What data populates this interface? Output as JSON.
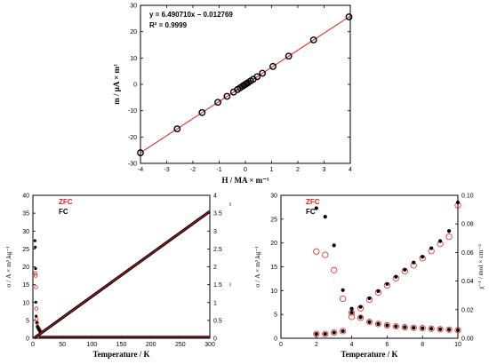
{
  "chart_data": [
    {
      "id": "top",
      "type": "scatter",
      "xlabel": "H / MA × m⁻¹",
      "ylabel": "m / μA × m²",
      "xlim": [
        -4,
        4
      ],
      "ylim": [
        -30,
        30
      ],
      "xticks": [
        -4,
        -3,
        -2,
        -1,
        0,
        1,
        2,
        3,
        4
      ],
      "yticks": [
        -30,
        -20,
        -10,
        0,
        10,
        20,
        30
      ],
      "annotations": [
        "y = 6.490710x − 0.012769",
        "R² = 0.9999"
      ],
      "fit": {
        "slope": 6.49071,
        "intercept": -0.012769,
        "color": "#e02020"
      },
      "series": [
        {
          "x": [
            -4,
            -2.6,
            -1.65,
            -1.05,
            -0.7,
            -0.45,
            -0.3,
            -0.2,
            -0.1,
            -0.05,
            0,
            0.05,
            0.1,
            0.2,
            0.3,
            0.45,
            0.65,
            1.05,
            1.65,
            2.6,
            3.95
          ],
          "y": [
            -25.98,
            -16.89,
            -10.72,
            -6.83,
            -4.56,
            -2.93,
            -1.96,
            -1.31,
            -0.66,
            -0.34,
            -0.01,
            0.31,
            0.64,
            1.29,
            1.93,
            2.91,
            4.21,
            6.8,
            10.7,
            16.86,
            25.63
          ]
        }
      ]
    },
    {
      "id": "bottom-left",
      "type": "scatter",
      "xlabel": "Temperature / K",
      "ylabel": "σ / A × m².kg⁻¹",
      "xlim": [
        0,
        300
      ],
      "ylim": [
        0,
        40
      ],
      "y2lim": [
        0,
        4
      ],
      "xticks": [
        0,
        50,
        100,
        150,
        200,
        250,
        300
      ],
      "yticks": [
        0,
        5,
        10,
        15,
        20,
        25,
        30,
        35,
        40
      ],
      "y2ticks": [
        0,
        0.5,
        1,
        1.5,
        2,
        2.5,
        3,
        3.5,
        4
      ],
      "y2label_marks": [
        "ı",
        "ı"
      ],
      "legend": [
        {
          "label": "ZFC",
          "color": "#e02020"
        },
        {
          "label": "FC",
          "color": "#000000"
        }
      ],
      "series": [
        {
          "name": "ZFC",
          "x": [
            2,
            2.5,
            3,
            3.5,
            4,
            5,
            6,
            7,
            8,
            9,
            10
          ],
          "y": [
            18.2,
            17.5,
            14.3,
            8.3,
            5.4,
            4.3,
            3.2,
            2.9,
            2.6,
            2.3,
            2.0
          ],
          "color": "#e02020"
        },
        {
          "name": "FC",
          "x": [
            2,
            2.5,
            3,
            3.5,
            4,
            5,
            6,
            7,
            8,
            9,
            10
          ],
          "y": [
            27.3,
            25.5,
            19.5,
            10.1,
            6.2,
            4.4,
            3.3,
            2.9,
            2.6,
            2.3,
            2.0
          ],
          "color": "#000000"
        },
        {
          "name": "χ⁻¹",
          "x_range": [
            2,
            300
          ],
          "y2_range": [
            0.003,
            3.55
          ],
          "color": "#000000",
          "fit_color": "#e02020"
        }
      ]
    },
    {
      "id": "bottom-right",
      "type": "scatter",
      "xlabel": "Temperature / K",
      "ylabel": "σ / A × m².kg⁻¹",
      "y2label": "χ⁻¹ / mol × cm⁻³",
      "xlim": [
        0,
        10
      ],
      "ylim": [
        0,
        30
      ],
      "y2lim": [
        0,
        0.1
      ],
      "xticks": [
        0,
        2,
        4,
        6,
        8,
        10
      ],
      "yticks": [
        0,
        5,
        10,
        15,
        20,
        25,
        30
      ],
      "y2ticks": [
        0.0,
        0.02,
        0.04,
        0.06,
        0.08,
        0.1
      ],
      "legend": [
        {
          "label": "ZFC",
          "color": "#e02020"
        },
        {
          "label": "FC",
          "color": "#000000"
        }
      ],
      "series": [
        {
          "name": "σ ZFC",
          "axis": "left",
          "marker": "open-circle",
          "color": "#e02020",
          "x": [
            2,
            2.5,
            3,
            3.5,
            4,
            4.5,
            5,
            5.5,
            6,
            6.5,
            7,
            7.5,
            8,
            8.5,
            9,
            9.5,
            10
          ],
          "y": [
            18.2,
            17.5,
            14.3,
            8.3,
            5.4,
            4.3,
            3.4,
            3.0,
            2.7,
            2.5,
            2.3,
            2.2,
            2.1,
            2.0,
            1.9,
            1.8,
            1.7
          ]
        },
        {
          "name": "σ FC",
          "axis": "left",
          "marker": "filled-circle",
          "color": "#000000",
          "x": [
            2,
            2.5,
            3,
            3.5,
            4,
            4.5,
            5,
            5.5,
            6,
            6.5,
            7,
            7.5,
            8,
            8.5,
            9,
            9.5,
            10
          ],
          "y": [
            27.3,
            25.5,
            19.5,
            10.1,
            6.2,
            4.4,
            3.4,
            3.0,
            2.7,
            2.5,
            2.3,
            2.2,
            2.1,
            2.0,
            1.9,
            1.8,
            1.7
          ]
        },
        {
          "name": "χ⁻¹ ZFC",
          "axis": "right",
          "marker": "open-circle",
          "color": "#e02020",
          "x": [
            2,
            2.5,
            3,
            3.5,
            4,
            4.5,
            5,
            5.5,
            6,
            6.5,
            7,
            7.5,
            8,
            8.5,
            9,
            9.5,
            10
          ],
          "y": [
            0.003,
            0.003,
            0.004,
            0.005,
            0.015,
            0.021,
            0.027,
            0.032,
            0.037,
            0.042,
            0.047,
            0.051,
            0.056,
            0.061,
            0.066,
            0.071,
            0.093
          ]
        },
        {
          "name": "χ⁻¹ FC",
          "axis": "right",
          "marker": "filled-circle",
          "color": "#000000",
          "x": [
            2,
            2.5,
            3,
            3.5,
            4,
            4.5,
            5,
            5.5,
            6,
            6.5,
            7,
            7.5,
            8,
            8.5,
            9,
            9.5,
            10
          ],
          "y": [
            0.003,
            0.003,
            0.004,
            0.005,
            0.018,
            0.022,
            0.028,
            0.033,
            0.038,
            0.043,
            0.048,
            0.053,
            0.057,
            0.063,
            0.068,
            0.075,
            0.095
          ]
        }
      ]
    }
  ]
}
